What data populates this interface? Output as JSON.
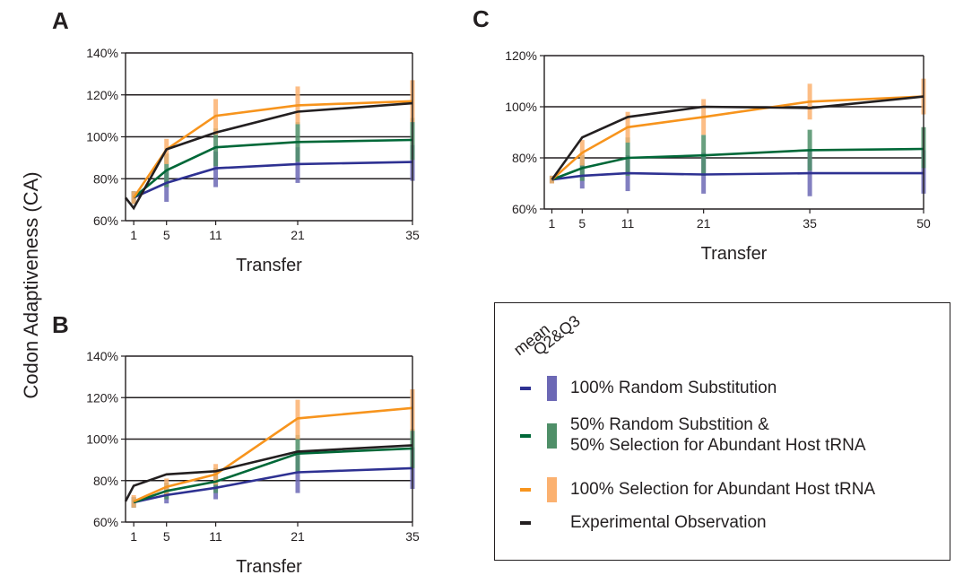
{
  "figure": {
    "y_axis_label": "Codon Adaptiveness (CA)",
    "colors": {
      "random": "#2e3192",
      "random_q": "#6c68b5",
      "mixed": "#006838",
      "mixed_q": "#4f8f68",
      "selection": "#f7941d",
      "selection_q": "#fbb170",
      "experimental": "#231f20"
    }
  },
  "chart_data": [
    {
      "panel": "A",
      "type": "line",
      "xlabel": "Transfer",
      "x": [
        1,
        5,
        11,
        21,
        35
      ],
      "xticks": [
        "1",
        "5",
        "11",
        "21",
        "35"
      ],
      "xlim": [
        0,
        35
      ],
      "ylim": [
        60,
        140
      ],
      "yticks": [
        "60%",
        "80%",
        "100%",
        "120%",
        "140%"
      ],
      "ytick_values": [
        60,
        80,
        100,
        120,
        140
      ],
      "gridlines": [
        80,
        100,
        120
      ],
      "series": [
        {
          "key": "random",
          "values": [
            71,
            78,
            85,
            87,
            88
          ],
          "q_low": [
            68,
            69,
            76,
            78,
            79
          ],
          "q_high": [
            74,
            84,
            93,
            95,
            96
          ]
        },
        {
          "key": "mixed",
          "values": [
            71,
            84,
            95,
            97.5,
            98.5
          ],
          "q_low": [
            68,
            76,
            86,
            88,
            89
          ],
          "q_high": [
            74,
            92,
            104,
            107,
            109
          ]
        },
        {
          "key": "selection",
          "values": [
            71,
            94,
            110,
            115,
            117
          ],
          "q_low": [
            68,
            87,
            101,
            106,
            107
          ],
          "q_high": [
            74,
            99,
            118,
            124,
            127
          ]
        },
        {
          "key": "experimental",
          "x": [
            0,
            1,
            5,
            11,
            21,
            35
          ],
          "values": [
            71,
            66,
            94,
            102,
            112,
            116
          ]
        }
      ]
    },
    {
      "panel": "B",
      "type": "line",
      "xlabel": "Transfer",
      "x": [
        1,
        5,
        11,
        21,
        35
      ],
      "xticks": [
        "1",
        "5",
        "11",
        "21",
        "35"
      ],
      "xlim": [
        0,
        35
      ],
      "ylim": [
        60,
        140
      ],
      "yticks": [
        "60%",
        "80%",
        "100%",
        "120%",
        "140%"
      ],
      "ytick_values": [
        60,
        80,
        100,
        120,
        140
      ],
      "gridlines": [
        80,
        100,
        120
      ],
      "series": [
        {
          "key": "random",
          "values": [
            69.5,
            73,
            76.5,
            84,
            86
          ],
          "q_low": [
            67,
            69,
            71,
            74,
            76
          ],
          "q_high": [
            72,
            77,
            82,
            94,
            96
          ]
        },
        {
          "key": "mixed",
          "values": [
            69.5,
            75,
            79.5,
            93,
            95.5
          ],
          "q_low": [
            67,
            71,
            74,
            84,
            86
          ],
          "q_high": [
            72,
            79,
            86,
            102,
            105
          ]
        },
        {
          "key": "selection",
          "values": [
            70,
            77,
            83,
            110,
            115
          ],
          "q_low": [
            67,
            73,
            78,
            100,
            104
          ],
          "q_high": [
            73,
            81,
            88,
            119,
            124
          ]
        },
        {
          "key": "experimental",
          "x": [
            0,
            1,
            5,
            11,
            21,
            35
          ],
          "values": [
            70,
            77.5,
            83,
            84.5,
            94,
            97
          ]
        }
      ]
    },
    {
      "panel": "C",
      "type": "line",
      "xlabel": "Transfer",
      "x": [
        1,
        5,
        11,
        21,
        35,
        50
      ],
      "xticks": [
        "1",
        "5",
        "11",
        "21",
        "35",
        "50"
      ],
      "xlim": [
        0,
        50
      ],
      "ylim": [
        60,
        120
      ],
      "yticks": [
        "60%",
        "80%",
        "100%",
        "120%"
      ],
      "ytick_values": [
        60,
        80,
        100,
        120
      ],
      "gridlines": [
        80,
        100
      ],
      "series": [
        {
          "key": "random",
          "values": [
            71.5,
            73,
            74,
            73.5,
            74,
            74
          ],
          "q_low": [
            70,
            68,
            67,
            66,
            65,
            66
          ],
          "q_high": [
            73,
            78,
            81,
            82,
            83,
            83
          ]
        },
        {
          "key": "mixed",
          "values": [
            71.5,
            76,
            80,
            81,
            83,
            83.5
          ],
          "q_low": [
            70,
            71,
            73,
            73,
            75,
            76
          ],
          "q_high": [
            73,
            81,
            88,
            89,
            91,
            92
          ]
        },
        {
          "key": "selection",
          "values": [
            71.5,
            82,
            92,
            96,
            102,
            104
          ],
          "q_low": [
            70,
            77,
            86,
            89,
            95,
            97
          ],
          "q_high": [
            73,
            87,
            98,
            103,
            109,
            111
          ]
        },
        {
          "key": "experimental",
          "values": [
            71.5,
            88,
            96,
            100,
            99.5,
            104
          ]
        }
      ]
    }
  ],
  "legend": {
    "head_mean": "mean",
    "head_q": "Q2&Q3",
    "items": [
      {
        "key": "random",
        "label": "100% Random Substitution",
        "label2": ""
      },
      {
        "key": "mixed",
        "label": "50% Random Substition &",
        "label2": "50% Selection for Abundant Host tRNA"
      },
      {
        "key": "selection",
        "label": "100% Selection for Abundant Host tRNA",
        "label2": ""
      },
      {
        "key": "experimental",
        "label": "Experimental Observation",
        "label2": ""
      }
    ]
  }
}
